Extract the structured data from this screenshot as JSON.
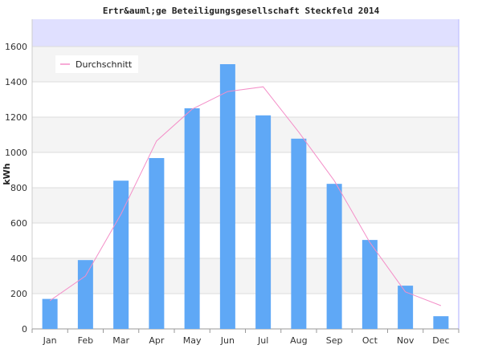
{
  "chart_data": {
    "type": "bar",
    "title": "Ertr&auml;ge Beteiligungsgesellschaft Steckfeld 2014",
    "ylabel": "kWh",
    "xlabel": "",
    "categories": [
      "Jan",
      "Feb",
      "Mar",
      "Apr",
      "May",
      "Jun",
      "Jul",
      "Aug",
      "Sep",
      "Oct",
      "Nov",
      "Dec"
    ],
    "series": [
      {
        "values": [
          170,
          390,
          840,
          968,
          1250,
          1500,
          1210,
          1078,
          822,
          504,
          245,
          72
        ],
        "color": "#5fa8f6"
      },
      {
        "name": "Durchschnitt",
        "type": "line",
        "values": [
          160,
          300,
          650,
          1065,
          1245,
          1345,
          1372,
          1115,
          840,
          490,
          210,
          132
        ],
        "color": "#f48fc8"
      }
    ],
    "yticks": [
      0,
      200,
      400,
      600,
      800,
      1000,
      1200,
      1400,
      1600
    ],
    "ylim": [
      0,
      1600
    ],
    "grid": true,
    "legend_position": "top-left",
    "colors": {
      "bar": "#5fa8f6",
      "line": "#f48fc8",
      "band_light": "#f4f4f4",
      "band_white": "#ffffff",
      "overflow_band": "#e0e0ff",
      "plot_border": "#c8c8ff"
    }
  }
}
